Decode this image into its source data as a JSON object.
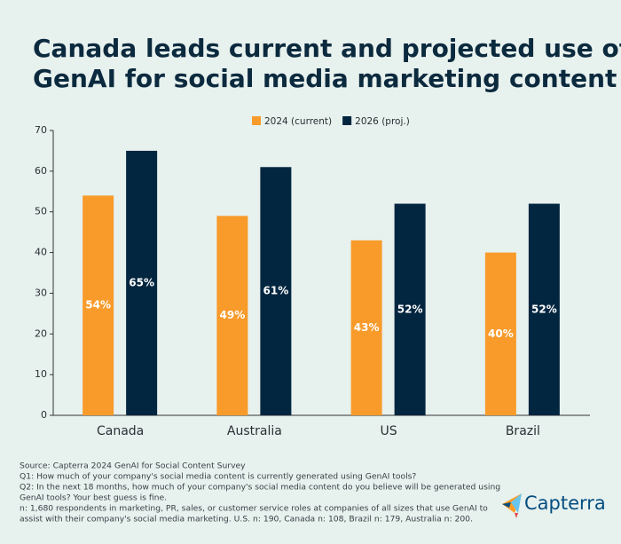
{
  "chart_data": {
    "type": "bar",
    "title_lines": [
      "Canada leads current and projected use of",
      "GenAI for social media marketing content"
    ],
    "categories": [
      "Canada",
      "Australia",
      "US",
      "Brazil"
    ],
    "series": [
      {
        "name": "2024 (current)",
        "color": "#f89b2b",
        "values": [
          54,
          49,
          43,
          40
        ],
        "value_labels": [
          "54%",
          "49%",
          "43%",
          "40%"
        ]
      },
      {
        "name": "2026 (proj.)",
        "color": "#032640",
        "values": [
          65,
          61,
          52,
          52
        ],
        "value_labels": [
          "65%",
          "61%",
          "52%",
          "52%"
        ]
      }
    ],
    "ylim": [
      0,
      70
    ],
    "yticks": [
      0,
      10,
      20,
      30,
      40,
      50,
      60,
      70
    ],
    "grid": false,
    "notes": [
      "Source: Capterra 2024 GenAI for Social Content Survey",
      "Q1: How much of your company's social media content is currently generated using GenAI tools?",
      "Q2: In the next 18 months, how much of your company's social media content do you believe will be generated using",
      "GenAI tools? Your best guess is fine.",
      "n: 1,680 respondents in marketing, PR, sales, or customer service roles at companies of all sizes that use GenAI to",
      "assist with their company's social media marketing. U.S. n: 190, Canada n: 108, Brazil n: 179, Australia n: 200."
    ],
    "logo": "Capterra"
  }
}
